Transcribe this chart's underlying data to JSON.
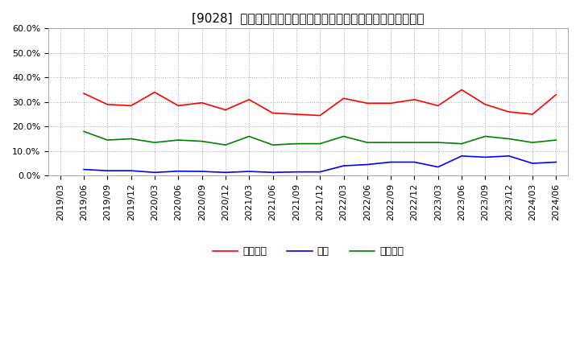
{
  "title": "[9028]  売上債権、在庫、買入債務の総資産に対する比率の推移",
  "x_labels": [
    "2019/03",
    "2019/06",
    "2019/09",
    "2019/12",
    "2020/03",
    "2020/06",
    "2020/09",
    "2020/12",
    "2021/03",
    "2021/06",
    "2021/09",
    "2021/12",
    "2022/03",
    "2022/06",
    "2022/09",
    "2022/12",
    "2023/03",
    "2023/06",
    "2023/09",
    "2023/12",
    "2024/03",
    "2024/06"
  ],
  "uriage": [
    null,
    33.5,
    29.0,
    28.5,
    34.0,
    28.5,
    29.7,
    26.8,
    31.0,
    25.5,
    25.0,
    24.5,
    31.5,
    29.5,
    29.5,
    31.0,
    28.5,
    35.0,
    29.0,
    26.0,
    25.0,
    33.0
  ],
  "zaiko": [
    null,
    2.5,
    2.0,
    2.0,
    1.3,
    1.8,
    1.7,
    1.3,
    1.7,
    1.3,
    1.5,
    1.5,
    4.0,
    4.5,
    5.5,
    5.5,
    3.5,
    8.0,
    7.5,
    8.0,
    5.0,
    5.5
  ],
  "kaiire": [
    null,
    18.0,
    14.5,
    15.0,
    13.5,
    14.5,
    14.0,
    12.5,
    16.0,
    12.5,
    13.0,
    13.0,
    16.0,
    13.5,
    13.5,
    13.5,
    13.5,
    13.0,
    16.0,
    15.0,
    13.5,
    14.5
  ],
  "uriage_color": "#ff0000",
  "zaiko_color": "#0000ff",
  "kaiire_color": "#008000",
  "legend_labels": [
    "売上債権",
    "在庫",
    "買入債務"
  ],
  "ylim": [
    0,
    60
  ],
  "yticks": [
    0,
    10,
    20,
    30,
    40,
    50,
    60
  ],
  "background_color": "#ffffff",
  "grid_color": "#aaaaaa",
  "title_fontsize": 11,
  "axis_fontsize": 8,
  "legend_fontsize": 9
}
